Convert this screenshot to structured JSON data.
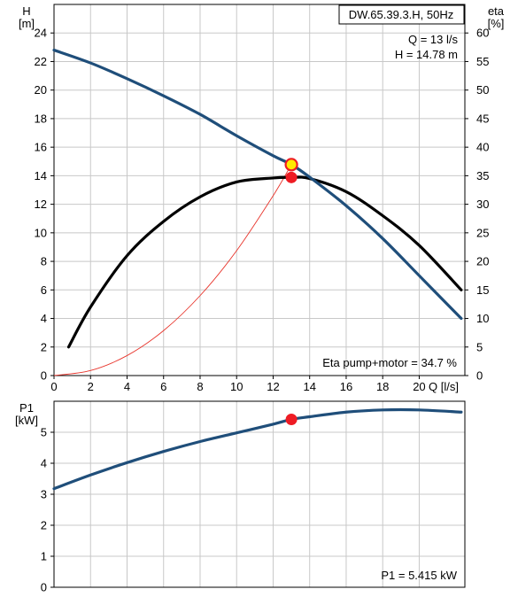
{
  "chart_data": [
    {
      "type": "line",
      "id": "head_eff",
      "model_label": "DW.65.39.3.H, 50Hz",
      "op_q_text": "Q = 13 l/s",
      "op_h_text": "H = 14.78 m",
      "eta_text": "Eta pump+motor = 34.7 %",
      "y_left_label_1": "H",
      "y_left_label_2": "[m]",
      "y_right_label_1": "eta",
      "y_right_label_2": "[%]",
      "x_label": "Q [l/s]",
      "xlim": [
        0,
        22.5
      ],
      "ylim_left": [
        0,
        26
      ],
      "ylim_right": [
        0,
        65
      ],
      "x_ticks": [
        0,
        2,
        4,
        6,
        8,
        10,
        12,
        14,
        16,
        18,
        20
      ],
      "y_left_ticks": [
        0,
        2,
        4,
        6,
        8,
        10,
        12,
        14,
        16,
        18,
        20,
        22,
        24
      ],
      "y_right_ticks": [
        0,
        5,
        10,
        15,
        20,
        25,
        30,
        35,
        40,
        45,
        50,
        55,
        60
      ],
      "grid": true,
      "colors": {
        "head": "#1f4e7a",
        "eff": "#000000",
        "system": "#e8342b",
        "marker": "#ee1c24",
        "marker_yellow": "#ffea00",
        "grid": "#c8c8c8"
      },
      "series": [
        {
          "name": "H",
          "axis": "left",
          "x": [
            0,
            2,
            4,
            6,
            8,
            10,
            12,
            13,
            14,
            16,
            18,
            20,
            22.3
          ],
          "y": [
            22.8,
            21.9,
            20.8,
            19.6,
            18.3,
            16.8,
            15.4,
            14.78,
            13.9,
            11.9,
            9.6,
            7.0,
            4.0
          ]
        },
        {
          "name": "eta",
          "axis": "right",
          "x": [
            0.8,
            2,
            4,
            6,
            8,
            10,
            12,
            13,
            14,
            16,
            18,
            20,
            22.3
          ],
          "y": [
            5.0,
            12.0,
            21.0,
            27.0,
            31.3,
            33.9,
            34.6,
            34.7,
            34.5,
            32.2,
            28.0,
            22.8,
            15.0
          ]
        },
        {
          "name": "system",
          "axis": "left",
          "x": [
            0,
            2,
            4,
            6,
            8,
            10,
            12,
            13
          ],
          "y": [
            0,
            0.35,
            1.4,
            3.15,
            5.6,
            8.75,
            12.6,
            14.78
          ]
        }
      ],
      "operating_point": {
        "q": 13,
        "h": 14.78,
        "eta": 34.7
      }
    },
    {
      "type": "line",
      "id": "power",
      "y_label_1": "P1",
      "y_label_2": "[kW]",
      "p1_text": "P1 = 5.415 kW",
      "xlim": [
        0,
        22.5
      ],
      "ylim": [
        0,
        6
      ],
      "y_ticks": [
        0,
        1,
        2,
        3,
        4,
        5
      ],
      "x_ticks": [
        0,
        2,
        4,
        6,
        8,
        10,
        12,
        14,
        16,
        18,
        20
      ],
      "grid": true,
      "series": [
        {
          "name": "P1",
          "x": [
            0,
            2,
            4,
            6,
            8,
            10,
            12,
            13,
            14,
            16,
            18,
            20,
            22.3
          ],
          "y": [
            3.18,
            3.62,
            4.02,
            4.38,
            4.7,
            4.98,
            5.26,
            5.415,
            5.5,
            5.65,
            5.72,
            5.72,
            5.65
          ]
        }
      ],
      "operating_point": {
        "q": 13,
        "p1": 5.415
      }
    }
  ]
}
